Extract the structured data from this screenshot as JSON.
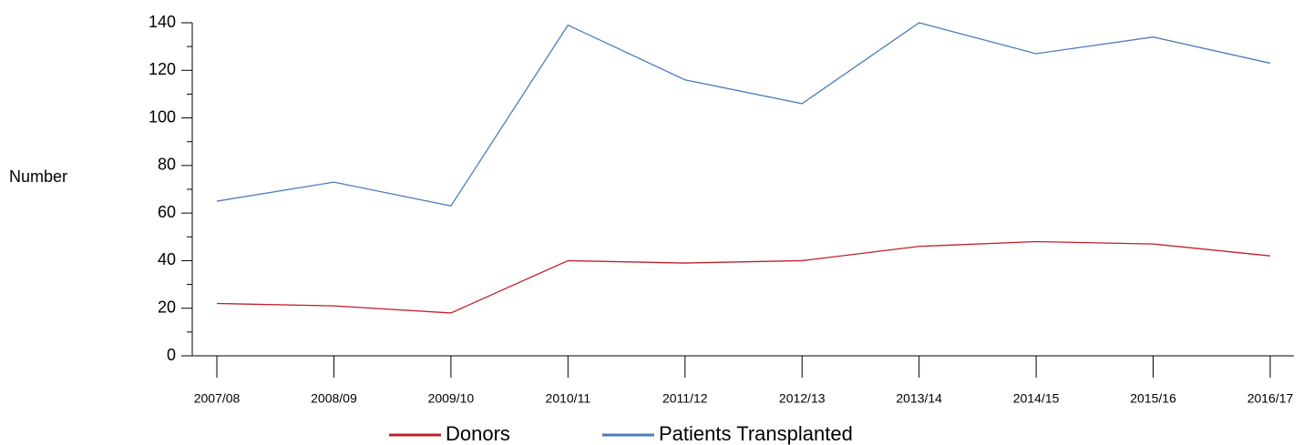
{
  "chart_data": {
    "type": "line",
    "y_label": "Number",
    "categories": [
      "2007/08",
      "2008/09",
      "2009/10",
      "2010/11",
      "2011/12",
      "2012/13",
      "2013/14",
      "2014/15",
      "2015/16",
      "2016/17"
    ],
    "series": [
      {
        "name": "Donors",
        "color": "#c0202a",
        "values": [
          22,
          21,
          18,
          40,
          39,
          40,
          46,
          48,
          47,
          42
        ]
      },
      {
        "name": "Patients Transplanted",
        "color": "#4a7ebb",
        "values": [
          65,
          73,
          63,
          139,
          116,
          106,
          140,
          127,
          134,
          123
        ]
      }
    ],
    "ylim": [
      0,
      140
    ],
    "yticks": [
      0,
      20,
      40,
      60,
      80,
      100,
      120,
      140
    ],
    "y_minor_ticks": [
      10,
      30,
      50,
      70,
      90,
      110,
      130
    ],
    "grid": false
  }
}
